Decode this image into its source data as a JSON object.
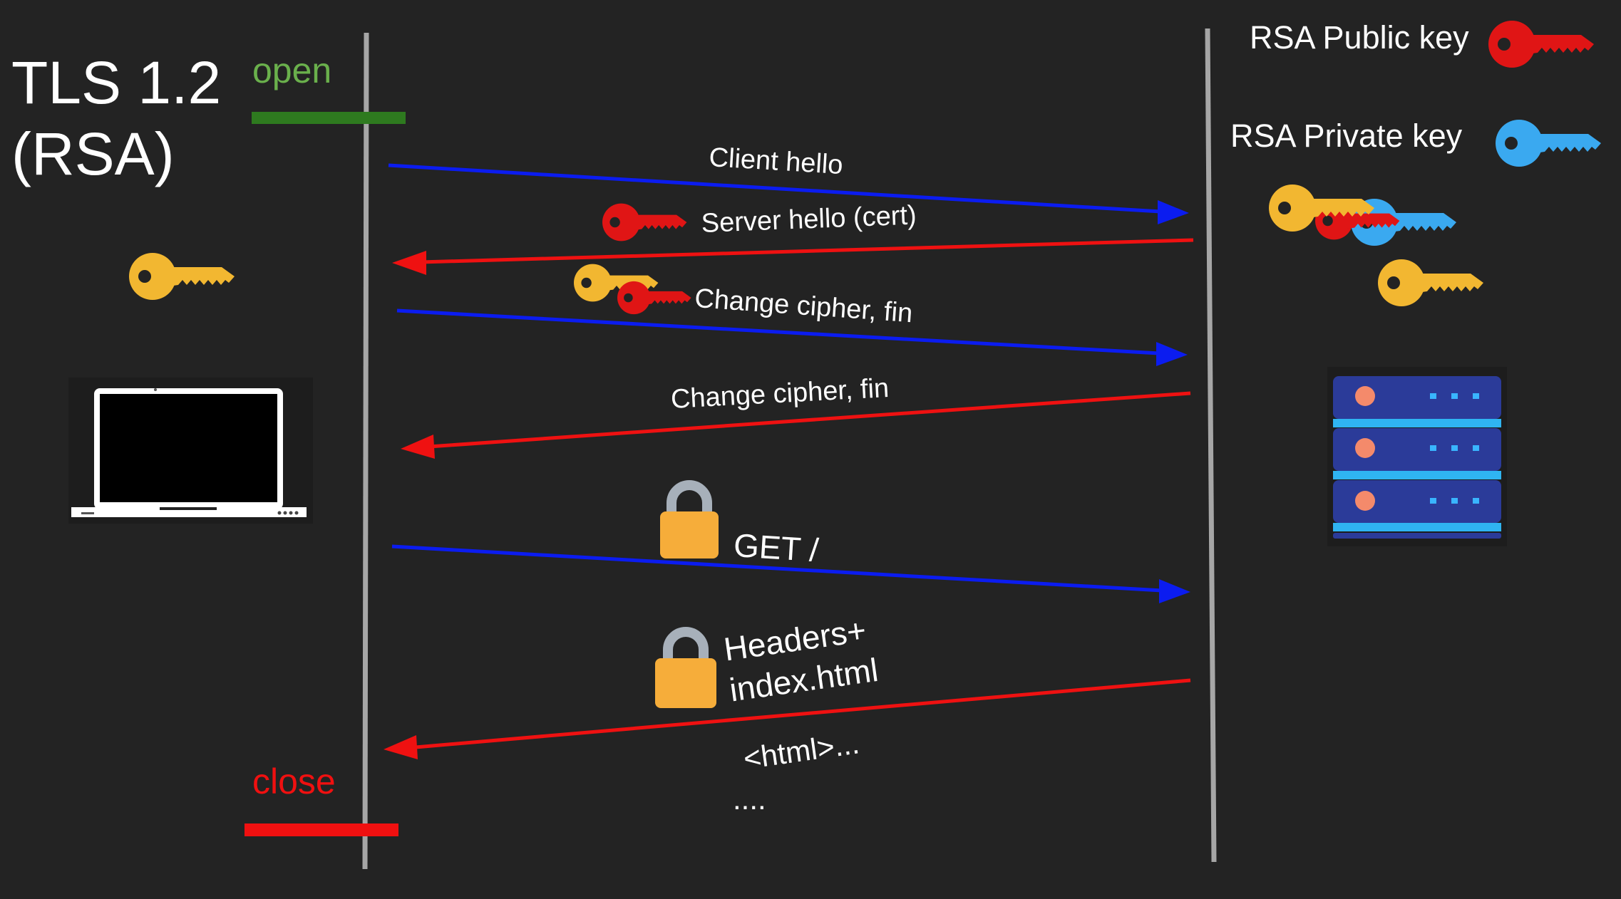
{
  "title": {
    "line1": "TLS 1.2",
    "line2": "(RSA)"
  },
  "open_label": "open",
  "close_label": "close",
  "legend": {
    "public_key": "RSA Public key",
    "private_key": "RSA Private key"
  },
  "messages": [
    {
      "label": "Client hello",
      "direction": "client-to-server"
    },
    {
      "label": "Server hello (cert)",
      "direction": "server-to-client"
    },
    {
      "label": "Change cipher, fin",
      "direction": "client-to-server"
    },
    {
      "label": "Change cipher, fin",
      "direction": "server-to-client"
    },
    {
      "label": "GET /",
      "direction": "client-to-server"
    },
    {
      "label_line1": "Headers+",
      "label_line2": "index.html",
      "direction": "server-to-client"
    }
  ],
  "response_body": {
    "line1": "<html>...",
    "line2": "...."
  },
  "colors": {
    "background": "#232323",
    "client_to_server": "#0b1cf0",
    "server_to_client": "#ef1111",
    "open": "#2e7a1f",
    "open_text": "#6ab04c",
    "close": "#f01010",
    "public_key": "#e01515",
    "private_key": "#3aa9f0",
    "symmetric_key": "#f2b731",
    "lock": "#f6ad3a",
    "timeline": "#a6a6a6"
  },
  "icons": {
    "client": "laptop-icon",
    "server": "server-rack-icon",
    "public_key": "red-key-icon",
    "private_key": "blue-key-icon",
    "session_key": "yellow-key-icon",
    "encrypted": "padlock-icon"
  }
}
